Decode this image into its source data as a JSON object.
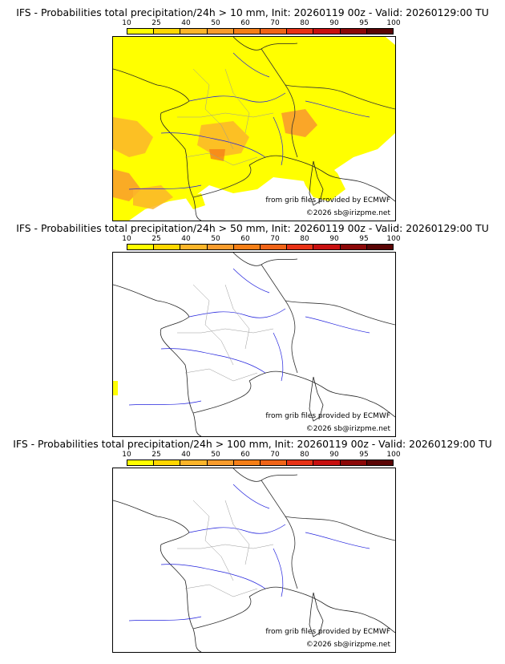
{
  "legend": {
    "labels": [
      "10",
      "25",
      "40",
      "50",
      "60",
      "70",
      "80",
      "90",
      "95",
      "100"
    ],
    "colors": [
      "#ffff00",
      "#ffd700",
      "#fcb52a",
      "#f99c2c",
      "#f57f17",
      "#f06418",
      "#e83216",
      "#c81010",
      "#8c0808",
      "#5a0404"
    ]
  },
  "credits": {
    "source": "from grib files provided by ECMWF",
    "copyright": "©2026 sb@irizpme.net"
  },
  "panels": [
    {
      "title": "IFS - Probabilities total precipitation/24h > 10 mm, Init: 20260119 00z - Valid: 20260129:00 TU"
    },
    {
      "title": "IFS - Probabilities total precipitation/24h > 50 mm, Init: 20260119 00z - Valid: 20260129:00 TU"
    },
    {
      "title": "IFS - Probabilities total precipitation/24h > 100 mm, Init: 20260119 00z - Valid: 20260129:00 TU"
    }
  ],
  "map_colors": {
    "coast": "#222222",
    "border": "#333333",
    "river": "#2222dd",
    "department": "#999999"
  }
}
